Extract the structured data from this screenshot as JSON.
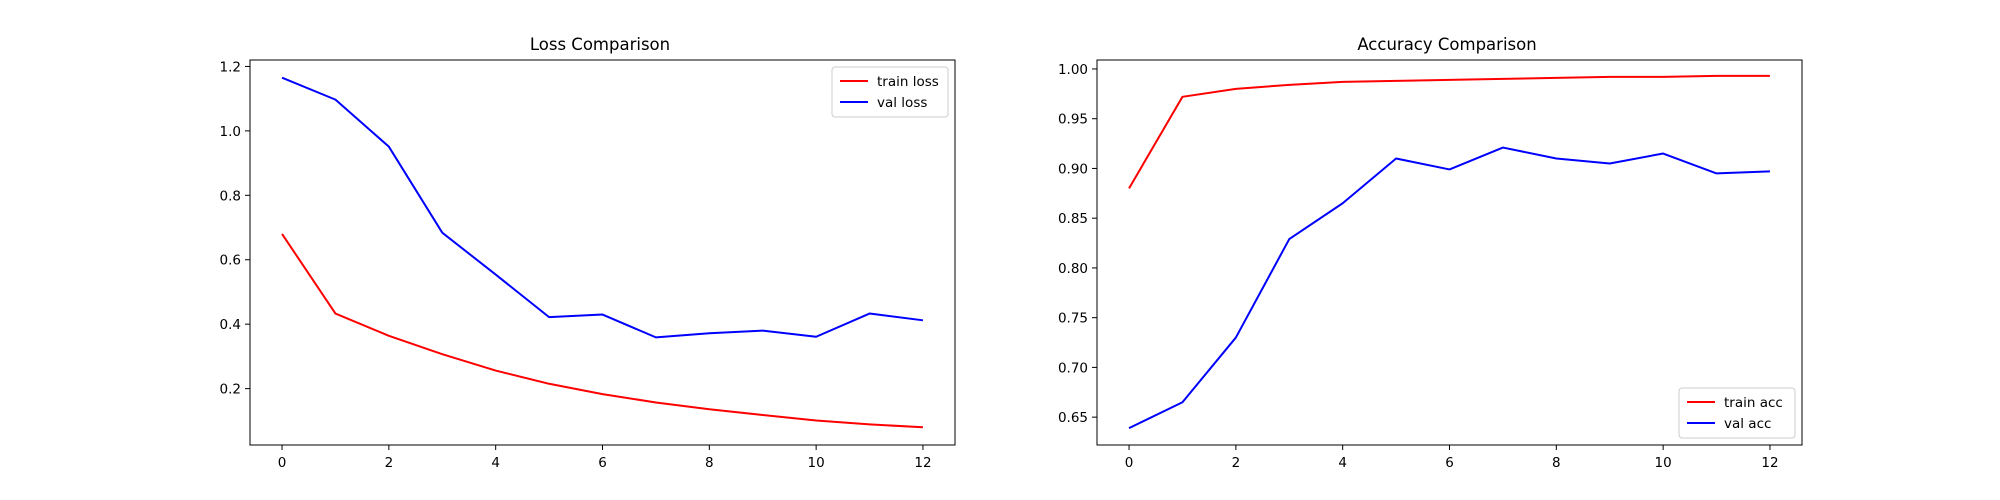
{
  "chart_data": [
    {
      "type": "line",
      "title": "Loss Comparison",
      "xlabel": "",
      "ylabel": "",
      "xlim": [
        -0.6,
        12.6
      ],
      "ylim": [
        0.025,
        1.22
      ],
      "xticks": [
        0,
        2,
        4,
        6,
        8,
        10,
        12
      ],
      "yticks": [
        0.2,
        0.4,
        0.6,
        0.8,
        1.0,
        1.2
      ],
      "ytick_labels": [
        "0.2",
        "0.4",
        "0.6",
        "0.8",
        "1.0",
        "1.2"
      ],
      "grid": false,
      "legend": "upper right",
      "x": [
        0,
        1,
        2,
        3,
        4,
        5,
        6,
        7,
        8,
        9,
        10,
        11,
        12
      ],
      "series": [
        {
          "name": "train loss",
          "color": "#ff0000",
          "values": [
            0.68,
            0.433,
            0.364,
            0.307,
            0.256,
            0.215,
            0.183,
            0.157,
            0.136,
            0.118,
            0.101,
            0.089,
            0.08
          ]
        },
        {
          "name": "val loss",
          "color": "#0000ff",
          "values": [
            1.165,
            1.097,
            0.951,
            0.684,
            0.554,
            0.422,
            0.43,
            0.359,
            0.372,
            0.38,
            0.361,
            0.433,
            0.412
          ]
        }
      ]
    },
    {
      "type": "line",
      "title": "Accuracy Comparison",
      "xlabel": "",
      "ylabel": "",
      "xlim": [
        -0.6,
        12.6
      ],
      "ylim": [
        0.622,
        1.009
      ],
      "xticks": [
        0,
        2,
        4,
        6,
        8,
        10,
        12
      ],
      "yticks": [
        0.65,
        0.7,
        0.75,
        0.8,
        0.85,
        0.9,
        0.95,
        1.0
      ],
      "ytick_labels": [
        "0.65",
        "0.70",
        "0.75",
        "0.80",
        "0.85",
        "0.90",
        "0.95",
        "1.00"
      ],
      "grid": false,
      "legend": "lower right",
      "x": [
        0,
        1,
        2,
        3,
        4,
        5,
        6,
        7,
        8,
        9,
        10,
        11,
        12
      ],
      "series": [
        {
          "name": "train acc",
          "color": "#ff0000",
          "values": [
            0.88,
            0.972,
            0.98,
            0.984,
            0.987,
            0.988,
            0.989,
            0.99,
            0.991,
            0.992,
            0.992,
            0.993,
            0.993
          ]
        },
        {
          "name": "val acc",
          "color": "#0000ff",
          "values": [
            0.639,
            0.665,
            0.73,
            0.829,
            0.865,
            0.91,
            0.899,
            0.921,
            0.91,
            0.905,
            0.915,
            0.895,
            0.897
          ]
        }
      ]
    }
  ]
}
